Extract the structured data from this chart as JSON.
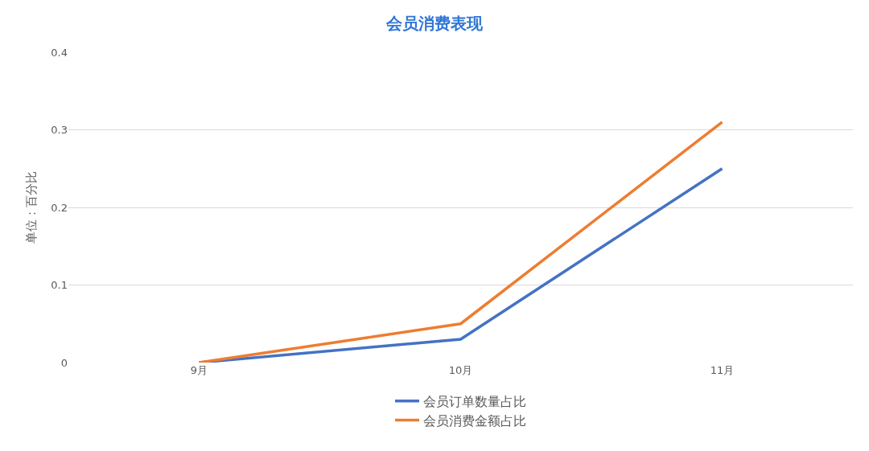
{
  "chart_data": {
    "type": "line",
    "title": "会员消费表现",
    "ylabel": "单位：百分比",
    "categories": [
      "9月",
      "10月",
      "11月"
    ],
    "series": [
      {
        "name": "会员订单数量占比",
        "color": "#4472c4",
        "values": [
          0,
          0.03,
          0.25
        ]
      },
      {
        "name": "会员消费金额占比",
        "color": "#ed7d31",
        "values": [
          0,
          0.05,
          0.31
        ]
      }
    ],
    "ylim": [
      0,
      0.4
    ],
    "yticks": [
      0,
      0.1,
      0.2,
      0.3,
      0.4
    ],
    "grid": "y",
    "legend": "bottom",
    "marker": "none",
    "line_style": "solid"
  }
}
